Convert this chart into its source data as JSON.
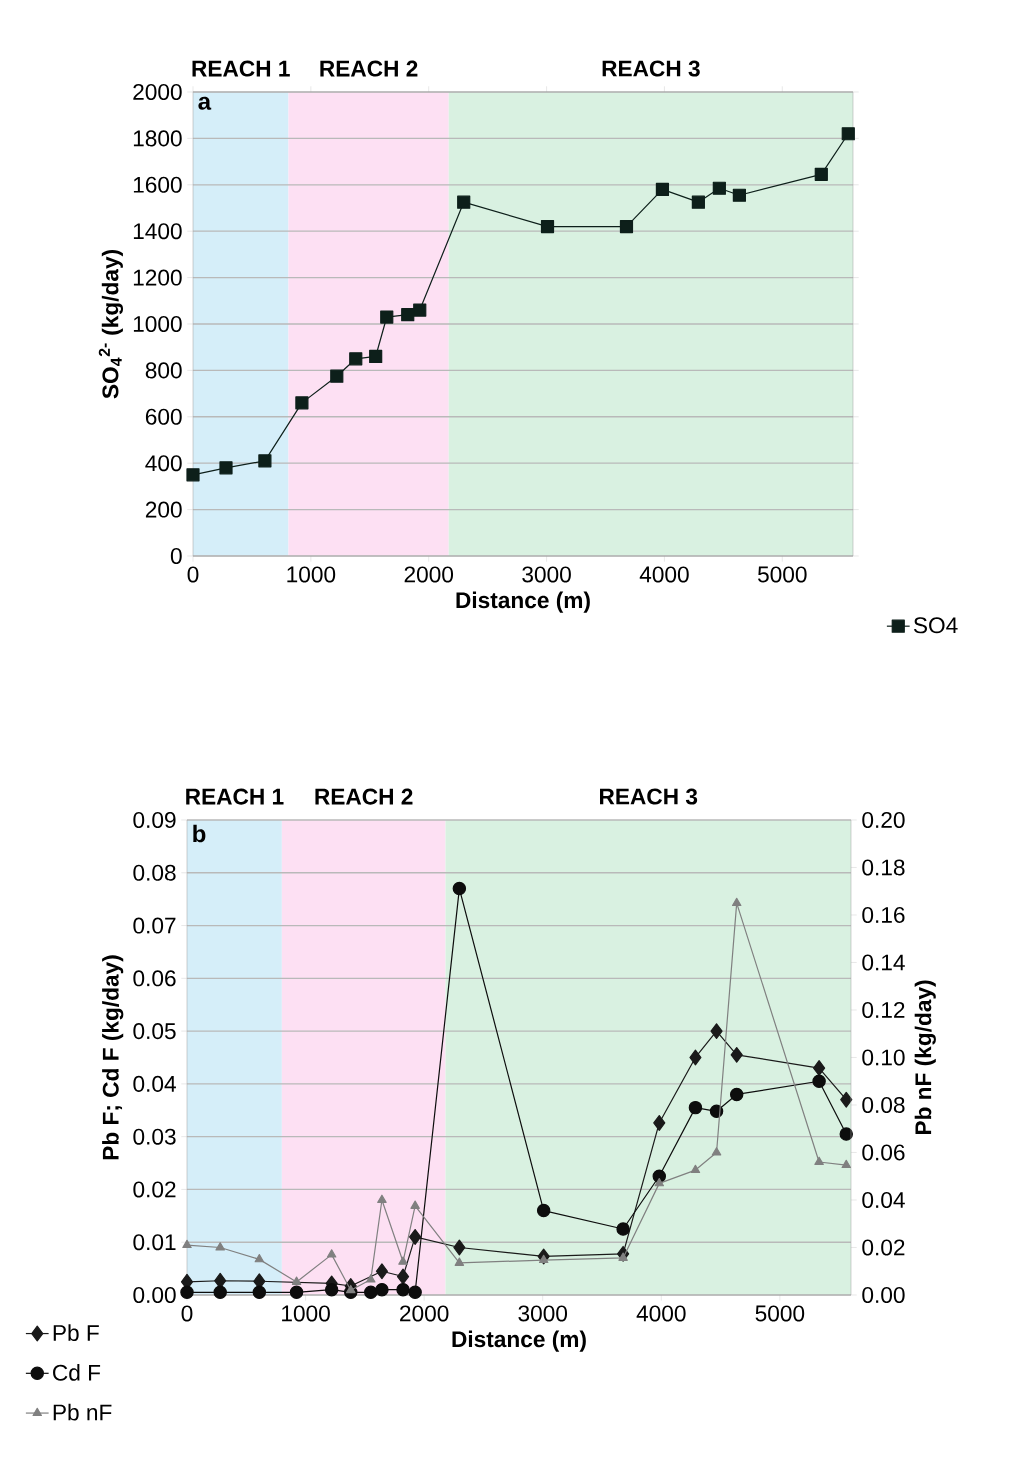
{
  "chart_data": [
    {
      "type": "line",
      "title": "a",
      "xlabel": "Distance (m)",
      "ylabel": "SO$_{4}$$^{2-}$ (kg/day)",
      "x": [
        0,
        280,
        610,
        924,
        1220,
        1381,
        1550,
        1644,
        1822,
        1924,
        2297,
        3008,
        3678,
        3983,
        4288,
        4466,
        4636,
        5331,
        5560
      ],
      "series": [
        {
          "name": "SO4",
          "color": "#0d1f1a",
          "marker": "square",
          "values": [
            350,
            380,
            410,
            660,
            775,
            850,
            860,
            1030,
            1040,
            1060,
            1525,
            1420,
            1420,
            1580,
            1525,
            1585,
            1555,
            1645,
            1820
          ]
        }
      ],
      "xlim": [
        0,
        5600
      ],
      "xticks": [
        0,
        1000,
        2000,
        3000,
        4000,
        5000
      ],
      "ylim": [
        0,
        2000
      ],
      "yticks": [
        0,
        200,
        400,
        600,
        800,
        1000,
        1200,
        1400,
        1600,
        1800,
        2000
      ],
      "grid": "y",
      "legend": "bottom right",
      "line_style": "solid",
      "bands": [
        {
          "axis": "x",
          "from": 0,
          "to": 810,
          "label": "REACH 1",
          "color": "#d5eef9"
        },
        {
          "axis": "x",
          "from": 810,
          "to": 2170,
          "label": "REACH 2",
          "color": "#fde0f3"
        },
        {
          "axis": "x",
          "from": 2170,
          "to": 5600,
          "label": "REACH 3",
          "color": "#d9f1e1"
        }
      ]
    },
    {
      "type": "line",
      "title": "b",
      "xlabel": "Distance (m)",
      "ylabel": "Pb F; Cd F (kg/day)",
      "y2label": "Pb nF (kg/day)",
      "x": [
        0,
        280,
        610,
        924,
        1220,
        1381,
        1550,
        1644,
        1822,
        1924,
        2297,
        3008,
        3678,
        3983,
        4288,
        4466,
        4636,
        5331,
        5560
      ],
      "series": [
        {
          "name": "Pb F",
          "color": "#1a1a1a",
          "marker": "diamond",
          "values": [
            0.0025,
            0.0027,
            0.0026,
            null,
            0.0022,
            0.0017,
            null,
            0.0045,
            0.0035,
            0.011,
            0.009,
            0.0073,
            0.0078,
            0.0326,
            0.045,
            0.05,
            0.0455,
            0.043,
            0.037
          ]
        },
        {
          "name": "Cd F",
          "color": "#0d0d0d",
          "marker": "circle",
          "values": [
            0.0005,
            0.0005,
            0.0005,
            0.0005,
            0.001,
            0.0005,
            0.0005,
            0.001,
            0.001,
            0.0005,
            0.077,
            0.016,
            0.0125,
            0.0225,
            0.0355,
            0.0348,
            0.038,
            0.0405,
            0.0305
          ]
        },
        {
          "name": "Pb nF",
          "color": "#808080",
          "marker": "triangle",
          "axis": "y2",
          "values": [
            0.021,
            0.02,
            0.015,
            0.0055,
            0.017,
            0.002,
            0.0065,
            0.04,
            0.014,
            0.0375,
            0.0135,
            0.0147,
            0.0156,
            0.047,
            0.0526,
            0.06,
            0.165,
            0.056,
            0.0547
          ]
        }
      ],
      "xlim": [
        0,
        5600
      ],
      "xticks": [
        0,
        1000,
        2000,
        3000,
        4000,
        5000
      ],
      "ylim": [
        0,
        0.09
      ],
      "yticks": [
        {
          "value": 0,
          "label": "0.00"
        },
        {
          "value": 0.01,
          "label": "0.01"
        },
        {
          "value": 0.02,
          "label": "0.02"
        },
        {
          "value": 0.03,
          "label": "0.03"
        },
        {
          "value": 0.04,
          "label": "0.04"
        },
        {
          "value": 0.05,
          "label": "0.05"
        },
        {
          "value": 0.06,
          "label": "0.06"
        },
        {
          "value": 0.07,
          "label": "0.07"
        },
        {
          "value": 0.08,
          "label": "0.08"
        },
        {
          "value": 0.09,
          "label": "0.09"
        }
      ],
      "y2lim": [
        0,
        0.2
      ],
      "y2ticks": [
        {
          "value": 0,
          "label": "0.00"
        },
        {
          "value": 0.02,
          "label": "0.02"
        },
        {
          "value": 0.04,
          "label": "0.04"
        },
        {
          "value": 0.06,
          "label": "0.06"
        },
        {
          "value": 0.08,
          "label": "0.08"
        },
        {
          "value": 0.1,
          "label": "0.10"
        },
        {
          "value": 0.12,
          "label": "0.12"
        },
        {
          "value": 0.14,
          "label": "0.14"
        },
        {
          "value": 0.16,
          "label": "0.16"
        },
        {
          "value": 0.18,
          "label": "0.18"
        },
        {
          "value": 0.2,
          "label": "0.20"
        }
      ],
      "grid": "y",
      "legend": "bottom left",
      "line_style": "solid",
      "bands": [
        {
          "axis": "x",
          "from": 0,
          "to": 800,
          "label": "REACH 1",
          "color": "#d5eef9"
        },
        {
          "axis": "x",
          "from": 800,
          "to": 2180,
          "label": "REACH 2",
          "color": "#fde0f3"
        },
        {
          "axis": "x",
          "from": 2180,
          "to": 5600,
          "label": "REACH 3",
          "color": "#d9f1e1"
        }
      ]
    }
  ]
}
